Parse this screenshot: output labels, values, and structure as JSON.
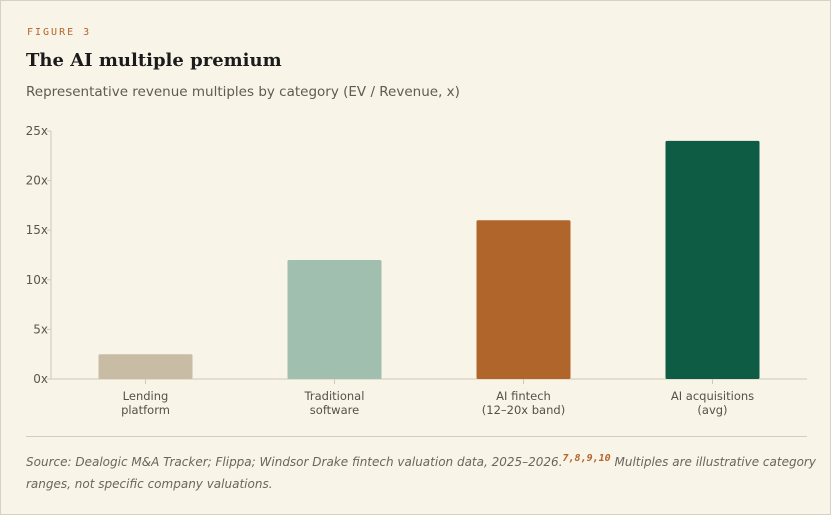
{
  "figure": {
    "eyebrow": "FIGURE 3",
    "title": "The AI multiple premium",
    "subtitle": "Representative revenue multiples by category (EV / Revenue, x)"
  },
  "chart_data": {
    "type": "bar",
    "title": "The AI multiple premium",
    "subtitle": "Representative revenue multiples by category (EV / Revenue, x)",
    "xlabel": "",
    "ylabel": "",
    "ylim": [
      0,
      25
    ],
    "yticks": [
      0,
      5,
      10,
      15,
      20,
      25
    ],
    "ytick_labels": [
      "0x",
      "5x",
      "10x",
      "15x",
      "20x",
      "25x"
    ],
    "grid": false,
    "legend": "none",
    "categories": [
      [
        "Lending",
        "platform"
      ],
      [
        "Traditional",
        "software"
      ],
      [
        "AI fintech",
        "(12–20x band)"
      ],
      [
        "AI acquisitions",
        "(avg)"
      ]
    ],
    "values": [
      2.5,
      12,
      16,
      24
    ],
    "colors": [
      "#c9bca4",
      "#a1bfaf",
      "#b0662a",
      "#0d5c43"
    ]
  },
  "footer": {
    "source_text": "Source: Dealogic M&A Tracker; Flippa; Windsor Drake fintech valuation data, 2025–2026.",
    "refs": "7,8,9,10",
    "note": " Multiples are illustrative category ranges, not specific company valuations."
  }
}
